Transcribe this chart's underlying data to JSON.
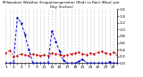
{
  "title": "Milwaukee Weather Evapotranspiration (Red) vs Rain (Blue) per Day (Inches)",
  "ylim": [
    0,
    1.6
  ],
  "xlim": [
    1,
    30
  ],
  "background_color": "#ffffff",
  "et_color": "#cc0000",
  "rain_color": "#0000cc",
  "days": [
    1,
    2,
    3,
    4,
    5,
    6,
    7,
    8,
    9,
    10,
    11,
    12,
    13,
    14,
    15,
    16,
    17,
    18,
    19,
    20,
    21,
    22,
    23,
    24,
    25,
    26,
    27,
    28,
    29,
    30
  ],
  "et": [
    0.3,
    0.38,
    0.2,
    0.22,
    0.28,
    0.25,
    0.22,
    0.28,
    0.25,
    0.22,
    0.25,
    0.22,
    0.3,
    0.28,
    0.25,
    0.22,
    0.25,
    0.28,
    0.3,
    0.32,
    0.28,
    0.25,
    0.3,
    0.28,
    0.32,
    0.35,
    0.3,
    0.28,
    0.32,
    0.25
  ],
  "rain": [
    0.0,
    0.0,
    0.0,
    1.35,
    1.2,
    0.85,
    0.4,
    0.02,
    0.0,
    0.0,
    0.0,
    0.0,
    0.95,
    0.65,
    0.35,
    0.08,
    0.0,
    0.0,
    0.0,
    0.05,
    0.12,
    0.0,
    0.0,
    0.0,
    0.0,
    0.0,
    0.0,
    0.04,
    0.0,
    0.0
  ],
  "tick_fontsize": 3.2,
  "title_fontsize": 3.0,
  "xticks": [
    1,
    2,
    3,
    4,
    5,
    6,
    7,
    8,
    9,
    10,
    11,
    12,
    13,
    14,
    15,
    16,
    17,
    18,
    19,
    20,
    21,
    22,
    23,
    24,
    25,
    26,
    27,
    28,
    29,
    30
  ],
  "yticks": [
    0.0,
    0.2,
    0.4,
    0.6,
    0.8,
    1.0,
    1.2,
    1.4,
    1.6
  ]
}
